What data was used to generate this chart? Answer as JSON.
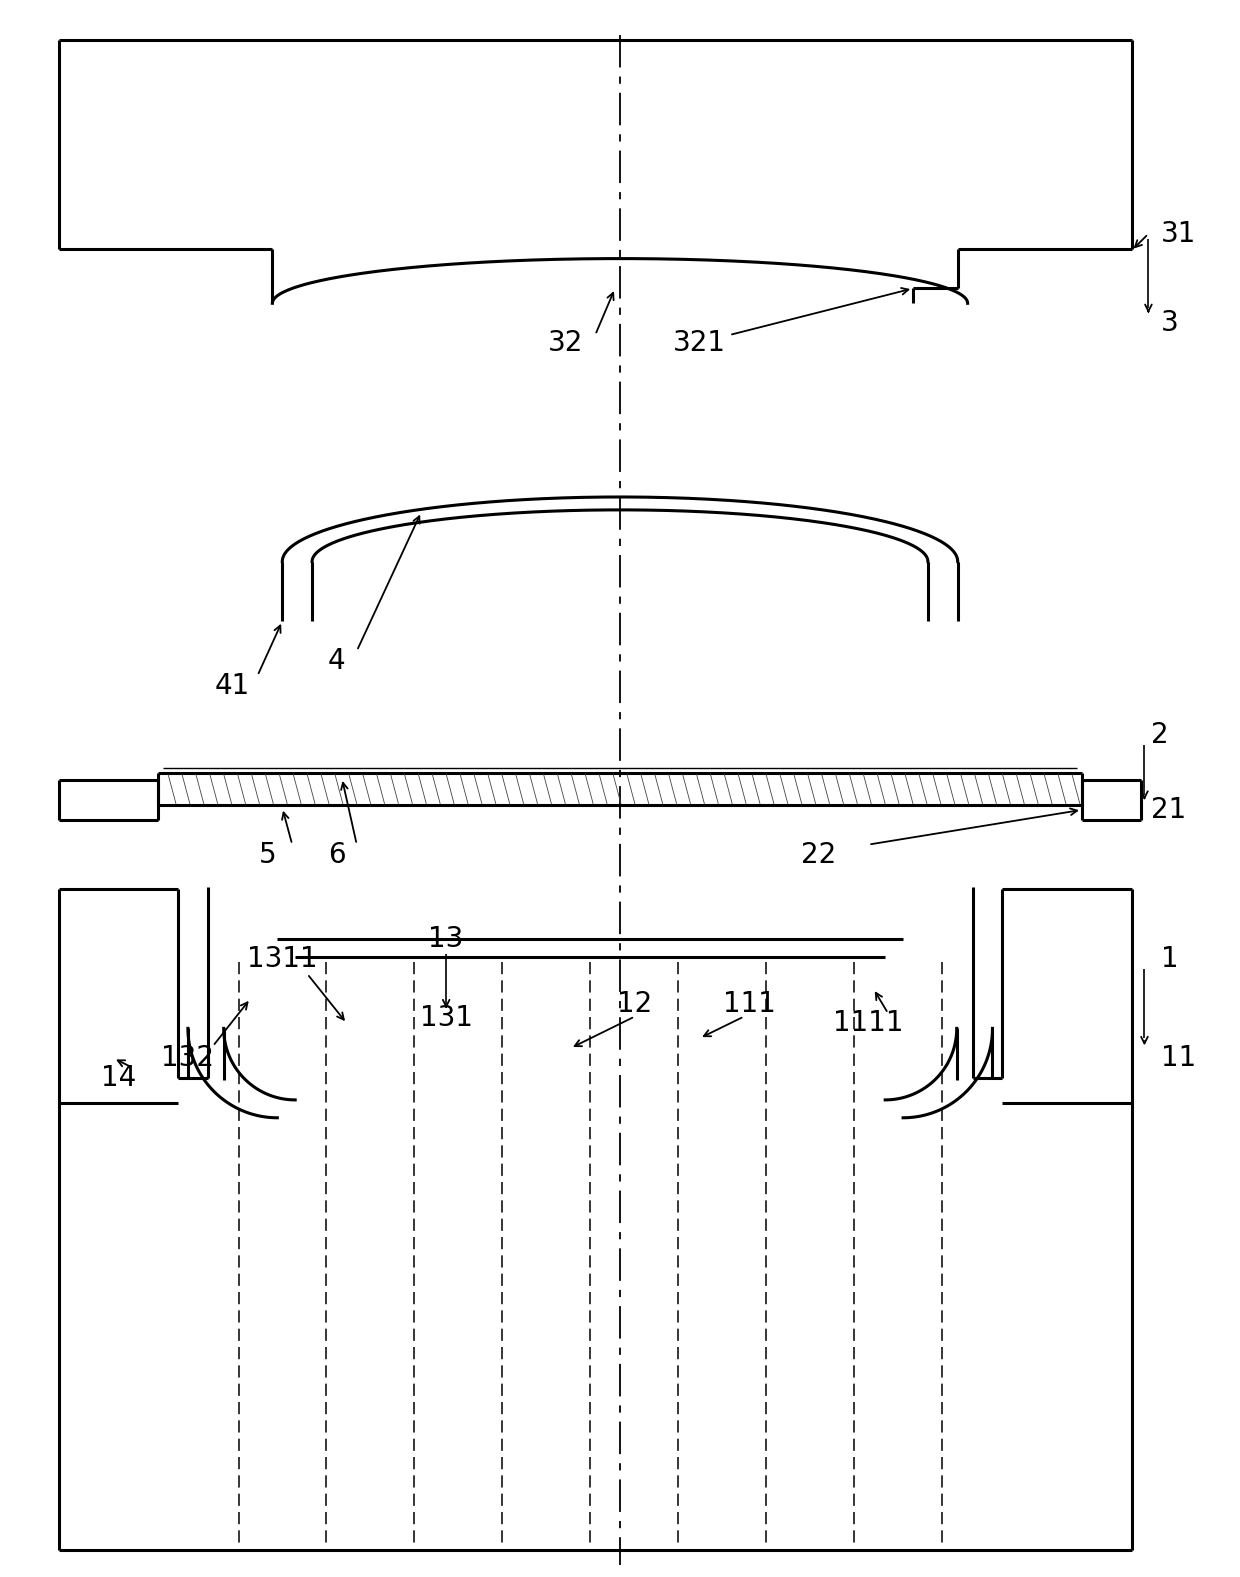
{
  "bg_color": "#ffffff",
  "line_color": "#000000",
  "fig_width": 12.4,
  "fig_height": 15.77
}
